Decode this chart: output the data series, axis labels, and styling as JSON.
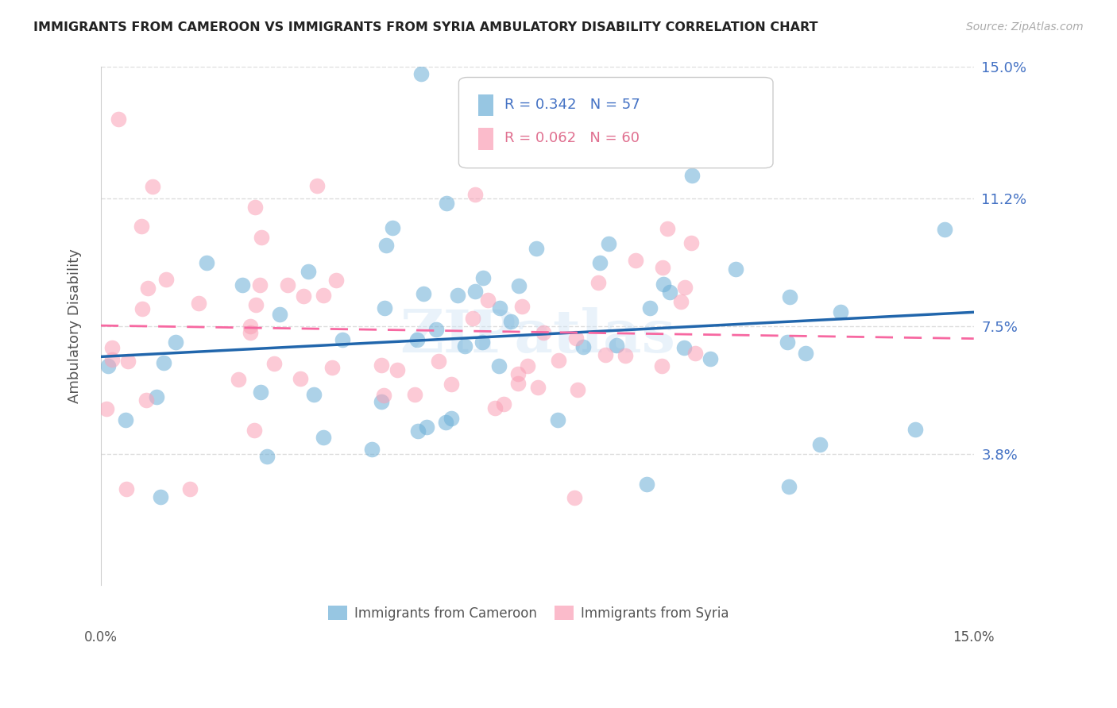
{
  "title": "IMMIGRANTS FROM CAMEROON VS IMMIGRANTS FROM SYRIA AMBULATORY DISABILITY CORRELATION CHART",
  "source": "Source: ZipAtlas.com",
  "ylabel": "Ambulatory Disability",
  "xmin": 0.0,
  "xmax": 0.15,
  "ymin": 0.0,
  "ymax": 0.15,
  "ytick_vals": [
    0.038,
    0.075,
    0.112,
    0.15
  ],
  "ytick_labels": [
    "3.8%",
    "7.5%",
    "11.2%",
    "15.0%"
  ],
  "cameroon_R": 0.342,
  "cameroon_N": 57,
  "syria_R": 0.062,
  "syria_N": 60,
  "cameroon_color": "#6baed6",
  "syria_color": "#fa9fb5",
  "cameroon_line_color": "#2166ac",
  "syria_line_color": "#f768a1",
  "legend_cameroon_label": "Immigrants from Cameroon",
  "legend_syria_label": "Immigrants from Syria",
  "watermark": "ZIPatlas",
  "background_color": "#ffffff",
  "grid_color": "#dddddd"
}
